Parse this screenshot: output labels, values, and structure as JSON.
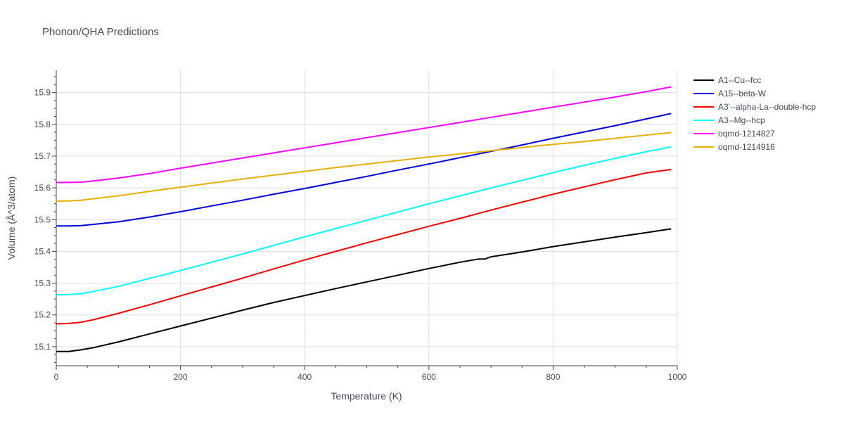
{
  "chart_data": {
    "type": "line",
    "title": "Phonon/QHA Predictions",
    "xlabel": "Temperature (K)",
    "ylabel": "Volume (Å^3/atom)",
    "xlim": [
      0,
      1000
    ],
    "ylim": [
      15.04,
      15.97
    ],
    "x_ticks": [
      0,
      200,
      400,
      600,
      800,
      1000
    ],
    "y_ticks": [
      15.1,
      15.2,
      15.3,
      15.4,
      15.5,
      15.6,
      15.7,
      15.8,
      15.9
    ],
    "grid": true,
    "legend_position": "right",
    "series": [
      {
        "name": "A1--Cu--fcc",
        "color": "#000000",
        "x": [
          0,
          20,
          40,
          60,
          80,
          100,
          150,
          200,
          250,
          300,
          350,
          400,
          450,
          500,
          550,
          600,
          650,
          680,
          690,
          700,
          750,
          800,
          850,
          900,
          950,
          990
        ],
        "y": [
          15.085,
          15.085,
          15.09,
          15.097,
          15.106,
          15.115,
          15.14,
          15.165,
          15.19,
          15.215,
          15.239,
          15.261,
          15.283,
          15.304,
          15.325,
          15.346,
          15.366,
          15.376,
          15.376,
          15.383,
          15.398,
          15.415,
          15.43,
          15.445,
          15.459,
          15.471
        ]
      },
      {
        "name": "A15--beta-W",
        "color": "#0000dd",
        "x": [
          0,
          20,
          40,
          60,
          100,
          150,
          200,
          250,
          300,
          350,
          400,
          450,
          500,
          550,
          600,
          650,
          700,
          750,
          800,
          850,
          900,
          950,
          990
        ],
        "y": [
          15.48,
          15.48,
          15.481,
          15.485,
          15.493,
          15.508,
          15.525,
          15.543,
          15.561,
          15.58,
          15.598,
          15.617,
          15.636,
          15.656,
          15.675,
          15.695,
          15.715,
          15.735,
          15.756,
          15.776,
          15.796,
          15.817,
          15.834
        ]
      },
      {
        "name": "A3'--alpha-La--double-hcp",
        "color": "#ff0000",
        "x": [
          0,
          20,
          40,
          60,
          100,
          150,
          200,
          250,
          300,
          350,
          400,
          450,
          500,
          550,
          600,
          650,
          700,
          750,
          800,
          850,
          900,
          950,
          990
        ],
        "y": [
          15.172,
          15.173,
          15.177,
          15.185,
          15.205,
          15.232,
          15.26,
          15.288,
          15.316,
          15.345,
          15.373,
          15.4,
          15.427,
          15.453,
          15.479,
          15.504,
          15.53,
          15.555,
          15.58,
          15.603,
          15.626,
          15.647,
          15.658
        ]
      },
      {
        "name": "A3--Mg--hcp",
        "color": "#00ffff",
        "x": [
          0,
          20,
          40,
          60,
          100,
          150,
          200,
          250,
          300,
          350,
          400,
          450,
          500,
          550,
          600,
          650,
          700,
          750,
          800,
          850,
          900,
          950,
          990
        ],
        "y": [
          15.263,
          15.264,
          15.267,
          15.274,
          15.29,
          15.315,
          15.34,
          15.366,
          15.392,
          15.419,
          15.446,
          15.472,
          15.498,
          15.524,
          15.55,
          15.575,
          15.6,
          15.624,
          15.648,
          15.671,
          15.693,
          15.714,
          15.729
        ]
      },
      {
        "name": "oqmd-1214827",
        "color": "#ff00ff",
        "x": [
          0,
          20,
          40,
          60,
          100,
          150,
          200,
          250,
          300,
          350,
          400,
          450,
          500,
          550,
          600,
          650,
          700,
          750,
          800,
          850,
          900,
          950,
          990
        ],
        "y": [
          15.617,
          15.617,
          15.618,
          15.622,
          15.631,
          15.645,
          15.662,
          15.678,
          15.694,
          15.71,
          15.726,
          15.742,
          15.758,
          15.774,
          15.79,
          15.806,
          15.822,
          15.838,
          15.854,
          15.87,
          15.886,
          15.903,
          15.918
        ]
      },
      {
        "name": "oqmd-1214916",
        "color": "#e6b000",
        "x": [
          0,
          20,
          40,
          60,
          100,
          150,
          200,
          250,
          300,
          350,
          400,
          450,
          500,
          550,
          600,
          650,
          700,
          750,
          800,
          850,
          900,
          950,
          990
        ],
        "y": [
          15.558,
          15.559,
          15.561,
          15.566,
          15.575,
          15.589,
          15.602,
          15.615,
          15.628,
          15.64,
          15.652,
          15.664,
          15.675,
          15.686,
          15.697,
          15.707,
          15.717,
          15.727,
          15.737,
          15.746,
          15.756,
          15.766,
          15.774
        ]
      }
    ]
  }
}
